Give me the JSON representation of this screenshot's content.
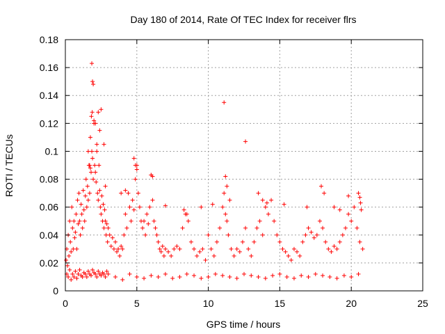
{
  "chart_data": {
    "type": "scatter",
    "title": "Day 180 of 2014, Rate Of TEC Index for receiver flrs",
    "xlabel": "GPS time / hours",
    "ylabel": "ROTI / TECUs",
    "xlim": [
      0,
      25
    ],
    "ylim": [
      0,
      0.18
    ],
    "xticks": [
      0,
      5,
      10,
      15,
      20,
      25
    ],
    "yticks": [
      0,
      0.02,
      0.04,
      0.06,
      0.08,
      0.1,
      0.12,
      0.14,
      0.16,
      0.18
    ],
    "xtick_labels": [
      "0",
      "5",
      "10",
      "15",
      "20",
      "25"
    ],
    "ytick_labels": [
      "0",
      "0.02",
      "0.04",
      "0.06",
      "0.08",
      "0.1",
      "0.12",
      "0.14",
      "0.16",
      "0.18"
    ],
    "grid": true,
    "marker": "+",
    "series_color": "#ff0000",
    "series": [
      {
        "name": "ROTI",
        "x": [
          0.05,
          0.1,
          0.15,
          0.2,
          0.25,
          0.3,
          0.35,
          0.4,
          0.45,
          0.5,
          0.55,
          0.6,
          0.65,
          0.7,
          0.75,
          0.8,
          0.85,
          0.9,
          0.95,
          1.0,
          1.05,
          1.1,
          1.15,
          1.2,
          1.25,
          1.3,
          1.35,
          1.4,
          1.45,
          1.5,
          1.55,
          1.6,
          1.65,
          1.7,
          1.75,
          1.8,
          1.85,
          1.9,
          1.95,
          2.0,
          2.05,
          2.1,
          2.15,
          2.2,
          2.25,
          2.3,
          2.35,
          2.4,
          2.45,
          2.5,
          2.55,
          2.6,
          2.65,
          2.7,
          2.75,
          2.8,
          2.85,
          2.9,
          2.95,
          3.0,
          3.1,
          3.2,
          3.3,
          3.4,
          3.5,
          3.6,
          3.7,
          3.8,
          3.9,
          4.0,
          4.1,
          4.2,
          4.3,
          4.4,
          4.5,
          4.6,
          4.7,
          4.8,
          4.9,
          5.0,
          5.1,
          5.2,
          5.3,
          5.4,
          5.5,
          5.6,
          5.7,
          5.8,
          5.9,
          6.0,
          6.1,
          6.2,
          6.3,
          6.4,
          6.5,
          6.6,
          6.7,
          6.8,
          6.9,
          7.0,
          7.2,
          7.4,
          7.6,
          7.8,
          8.0,
          8.2,
          8.4,
          8.6,
          8.8,
          9.0,
          9.2,
          9.4,
          9.6,
          9.8,
          10.0,
          10.2,
          10.4,
          10.6,
          10.8,
          11.0,
          11.1,
          11.2,
          11.3,
          11.4,
          11.6,
          11.8,
          12.0,
          12.2,
          12.4,
          12.6,
          12.8,
          13.0,
          13.2,
          13.4,
          13.6,
          13.8,
          14.0,
          14.2,
          14.4,
          14.6,
          14.8,
          15.0,
          15.2,
          15.4,
          15.6,
          15.8,
          16.0,
          16.2,
          16.4,
          16.6,
          16.8,
          17.0,
          17.2,
          17.4,
          17.6,
          17.8,
          18.0,
          18.2,
          18.4,
          18.6,
          18.8,
          19.0,
          19.2,
          19.4,
          19.6,
          19.8,
          20.0,
          20.2,
          20.4,
          20.6,
          20.8,
          0.1,
          0.2,
          0.3,
          0.4,
          0.5,
          0.6,
          0.7,
          0.8,
          0.9,
          1.0,
          1.1,
          1.2,
          1.3,
          1.4,
          1.5,
          1.6,
          1.7,
          1.8,
          1.9,
          2.0,
          2.1,
          2.2,
          2.3,
          2.4,
          2.5,
          2.6,
          2.7,
          2.8,
          2.9,
          3.0,
          3.5,
          4.0,
          4.5,
          5.0,
          5.5,
          6.0,
          6.5,
          7.0,
          7.5,
          8.0,
          8.5,
          9.0,
          9.5,
          10.0,
          10.5,
          11.0,
          11.5,
          12.0,
          12.5,
          13.0,
          13.5,
          14.0,
          14.5,
          15.0,
          15.5,
          16.0,
          16.5,
          17.0,
          17.5,
          18.0,
          18.5,
          19.0,
          19.5,
          20.0,
          20.5,
          1.85,
          1.9,
          1.88,
          1.95,
          1.82,
          2.0,
          2.1,
          2.3,
          2.2,
          2.5,
          2.7,
          2.8,
          1.7,
          1.75,
          1.6,
          2.4,
          4.8,
          4.9,
          5.0,
          6.0,
          6.1,
          8.3,
          8.5,
          11.1,
          11.2,
          11.3,
          12.6,
          13.5,
          13.8,
          17.9,
          18.1,
          19.8,
          20.5,
          20.6,
          20.7,
          20.65,
          11.5,
          4.2,
          3.9,
          7.0,
          9.5,
          10.3,
          14.1,
          15.3,
          16.9,
          18.8,
          19.2
        ],
        "y": [
          0.022,
          0.03,
          0.018,
          0.04,
          0.025,
          0.05,
          0.035,
          0.028,
          0.06,
          0.045,
          0.03,
          0.05,
          0.038,
          0.042,
          0.055,
          0.03,
          0.065,
          0.048,
          0.07,
          0.05,
          0.04,
          0.062,
          0.055,
          0.045,
          0.072,
          0.058,
          0.05,
          0.068,
          0.08,
          0.06,
          0.075,
          0.065,
          0.09,
          0.07,
          0.11,
          0.085,
          0.1,
          0.095,
          0.08,
          0.12,
          0.09,
          0.085,
          0.078,
          0.1,
          0.07,
          0.065,
          0.09,
          0.072,
          0.06,
          0.055,
          0.068,
          0.05,
          0.062,
          0.045,
          0.058,
          0.05,
          0.04,
          0.048,
          0.035,
          0.045,
          0.04,
          0.032,
          0.038,
          0.03,
          0.035,
          0.028,
          0.03,
          0.025,
          0.032,
          0.03,
          0.04,
          0.055,
          0.045,
          0.07,
          0.06,
          0.05,
          0.065,
          0.058,
          0.08,
          0.09,
          0.07,
          0.06,
          0.05,
          0.045,
          0.05,
          0.04,
          0.055,
          0.048,
          0.06,
          0.083,
          0.065,
          0.05,
          0.045,
          0.04,
          0.035,
          0.03,
          0.028,
          0.032,
          0.025,
          0.03,
          0.028,
          0.025,
          0.03,
          0.032,
          0.03,
          0.045,
          0.055,
          0.05,
          0.035,
          0.03,
          0.025,
          0.028,
          0.03,
          0.022,
          0.04,
          0.03,
          0.025,
          0.035,
          0.045,
          0.06,
          0.07,
          0.055,
          0.05,
          0.04,
          0.03,
          0.025,
          0.03,
          0.028,
          0.035,
          0.045,
          0.03,
          0.025,
          0.035,
          0.045,
          0.05,
          0.04,
          0.06,
          0.055,
          0.065,
          0.05,
          0.04,
          0.035,
          0.03,
          0.028,
          0.025,
          0.022,
          0.03,
          0.028,
          0.025,
          0.035,
          0.04,
          0.045,
          0.042,
          0.038,
          0.04,
          0.05,
          0.045,
          0.035,
          0.03,
          0.028,
          0.032,
          0.03,
          0.035,
          0.04,
          0.045,
          0.055,
          0.05,
          0.06,
          0.045,
          0.035,
          0.03,
          0.012,
          0.01,
          0.015,
          0.008,
          0.012,
          0.01,
          0.014,
          0.009,
          0.012,
          0.015,
          0.011,
          0.01,
          0.013,
          0.012,
          0.01,
          0.014,
          0.012,
          0.011,
          0.015,
          0.013,
          0.012,
          0.01,
          0.014,
          0.012,
          0.011,
          0.013,
          0.012,
          0.01,
          0.014,
          0.012,
          0.01,
          0.008,
          0.012,
          0.01,
          0.009,
          0.011,
          0.01,
          0.012,
          0.009,
          0.01,
          0.012,
          0.011,
          0.009,
          0.01,
          0.012,
          0.011,
          0.01,
          0.009,
          0.012,
          0.011,
          0.01,
          0.009,
          0.011,
          0.012,
          0.01,
          0.009,
          0.011,
          0.01,
          0.012,
          0.011,
          0.01,
          0.009,
          0.011,
          0.01,
          0.012,
          0.163,
          0.15,
          0.128,
          0.148,
          0.125,
          0.122,
          0.12,
          0.128,
          0.105,
          0.13,
          0.105,
          0.075,
          0.09,
          0.088,
          0.1,
          0.115,
          0.095,
          0.09,
          0.087,
          0.083,
          0.082,
          0.058,
          0.055,
          0.135,
          0.082,
          0.075,
          0.107,
          0.07,
          0.065,
          0.075,
          0.07,
          0.068,
          0.07,
          0.067,
          0.058,
          0.063,
          0.065,
          0.072,
          0.07,
          0.061,
          0.06,
          0.062,
          0.063,
          0.062,
          0.06,
          0.06,
          0.058
        ]
      }
    ]
  }
}
